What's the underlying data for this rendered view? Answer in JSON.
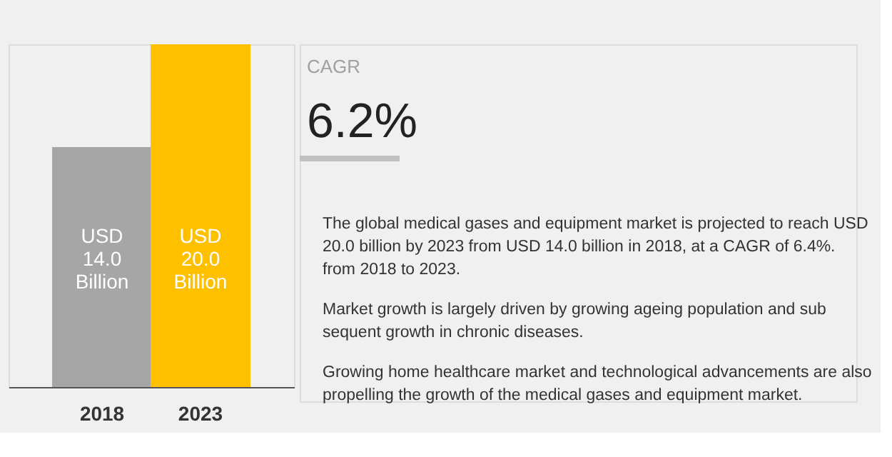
{
  "chart_data": {
    "type": "bar",
    "categories": [
      "2018",
      "2023"
    ],
    "values": [
      14.0,
      20.0
    ],
    "colors": [
      "#a6a6a6",
      "#ffc000"
    ],
    "value_labels": [
      "USD 14.0 Billion",
      "USD 20.0 Billion"
    ],
    "tick_labels": "x",
    "grid": false,
    "annotations": [
      "CAGR",
      "6.2%",
      "The global medical gases and equipment market is projected to reach USD 20.0 billion by 2023 from USD 14.0 billion in 2018, at a CAGR of 6.4%. from 2018 to 2023.",
      "Market growth is largely driven by growing ageing population and sub sequent growth in chronic diseases.",
      "Growing home healthcare market and technological advancements are also propelling the growth of the medical gases and equipment market."
    ]
  }
}
